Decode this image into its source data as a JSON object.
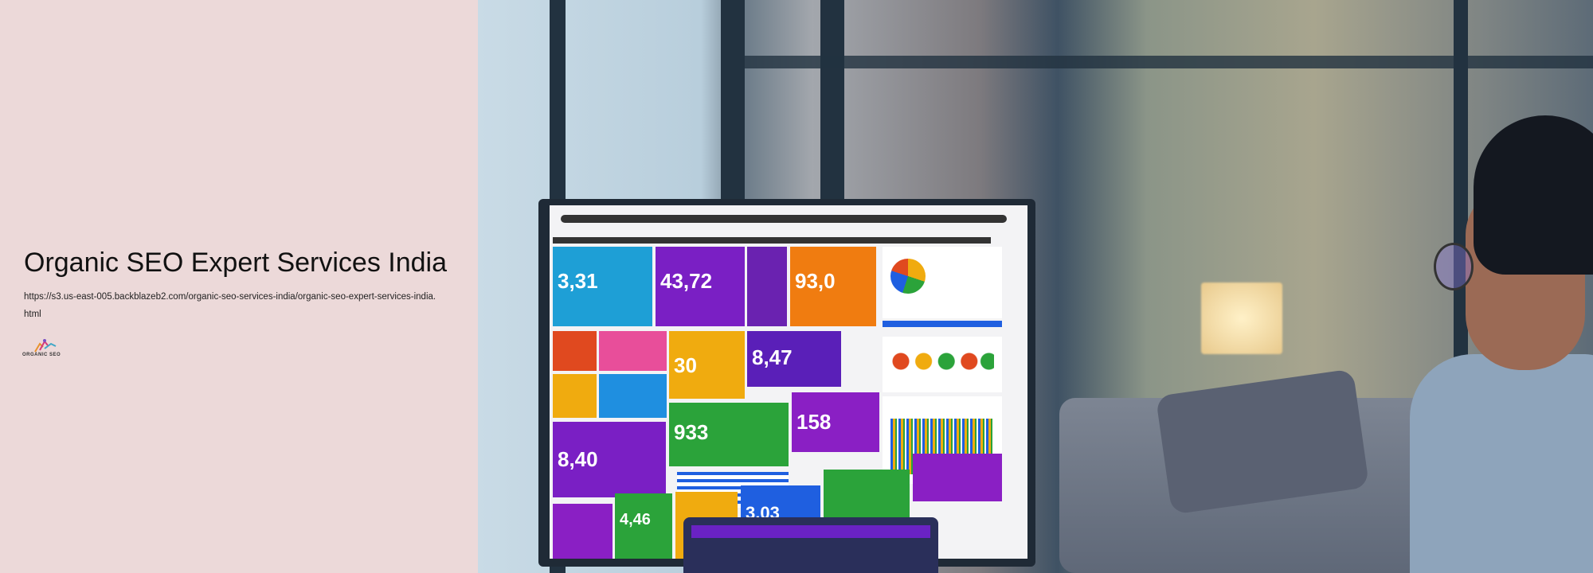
{
  "page": {
    "title": "Organic SEO Expert Services India",
    "url": "https://s3.us-east-005.backblazeb2.com/organic-seo-services-india/organic-seo-expert-services-india.html",
    "logo_text": "ORGANIC SEO"
  },
  "colors": {
    "background": "#ecd9d9",
    "accent_tiles": [
      "#1e9fd6",
      "#7a1fc4",
      "#f07c10",
      "#f0ab0f",
      "#2ba33a",
      "#e84e9a",
      "#1f5fe0",
      "#e0491f"
    ]
  },
  "photo": {
    "description_icons": [
      "monitor-dashboard",
      "woman-with-glasses",
      "lamp",
      "sofa"
    ],
    "tiles": [
      "3,31",
      "43,72",
      "93,0",
      "30",
      "8,47",
      "933",
      "158",
      "8,40",
      "4,46",
      "3,03"
    ]
  }
}
